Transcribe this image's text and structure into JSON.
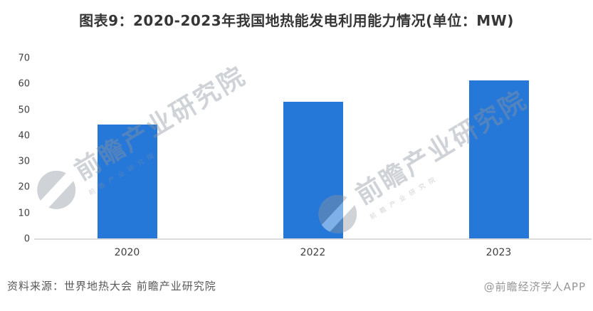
{
  "header": {
    "title": "图表9：2020-2023年我国地热能发电利用能力情况(单位：MW)"
  },
  "chart_data": {
    "type": "bar",
    "title": "图表9：2020-2023年我国地热能发电利用能力情况(单位：MW)",
    "categories": [
      "2020",
      "2022",
      "2023"
    ],
    "values": [
      44.5,
      53.3,
      61.5
    ],
    "unit": "MW",
    "xlabel": "",
    "ylabel": "",
    "ylim": [
      0,
      70
    ],
    "yticks": [
      0,
      10,
      20,
      30,
      40,
      50,
      60,
      70
    ],
    "grid": false,
    "legend": "none",
    "bar_color": "#2577d8",
    "baseline_color": "#dcdcdc"
  },
  "watermark": {
    "logo": "qianzhan-logo",
    "text": "前瞻产业研究院",
    "subtext": "前瞻产业研究院"
  },
  "footer": {
    "source": "资料来源：世界地热大会 前瞻产业研究院",
    "credit": "@前瞻经济学人APP"
  }
}
